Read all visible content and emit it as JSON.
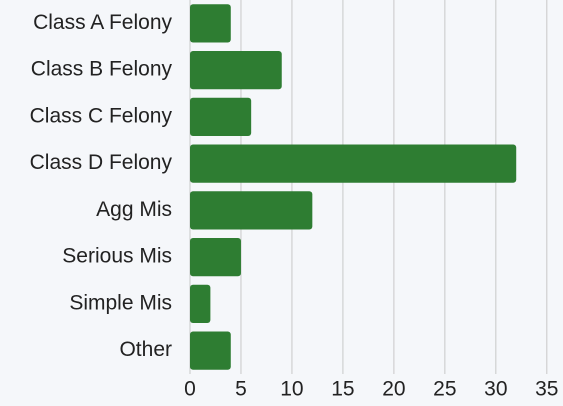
{
  "chart_data": {
    "type": "bar",
    "orientation": "horizontal",
    "categories": [
      "Class A Felony",
      "Class B Felony",
      "Class C Felony",
      "Class D Felony",
      "Agg Mis",
      "Serious Mis",
      "Simple Mis",
      "Other"
    ],
    "values": [
      4,
      9,
      6,
      32,
      12,
      5,
      2,
      4
    ],
    "color": "#2e7d32",
    "xlim": [
      0,
      36
    ],
    "xticks": [
      0,
      5,
      10,
      15,
      20,
      25,
      30,
      35
    ],
    "grid": true
  }
}
